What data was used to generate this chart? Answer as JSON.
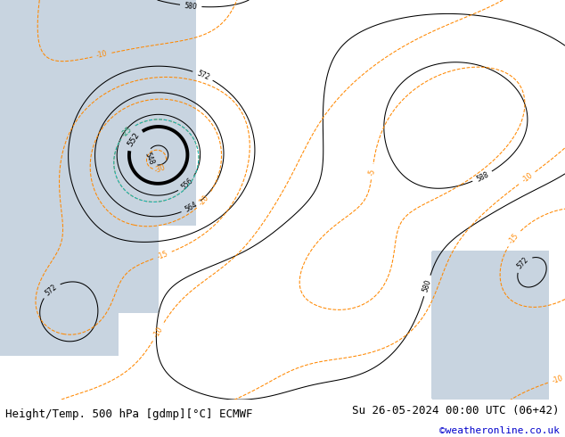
{
  "title_left": "Height/Temp. 500 hPa [gdmp][°C] ECMWF",
  "title_right": "Su 26-05-2024 00:00 UTC (06+42)",
  "credit": "©weatheronline.co.uk",
  "background_color": "#e8e8e8",
  "land_color_light": "#d0e8b0",
  "land_color_gray": "#b8b8b8",
  "ocean_color": "#c8d4e0",
  "fig_width": 6.34,
  "fig_height": 4.9,
  "dpi": 100,
  "bottom_bar_color": "#ffffff",
  "title_fontsize": 9.0,
  "credit_color": "#0000cc",
  "map_extent": [
    -30,
    42,
    30,
    76
  ]
}
